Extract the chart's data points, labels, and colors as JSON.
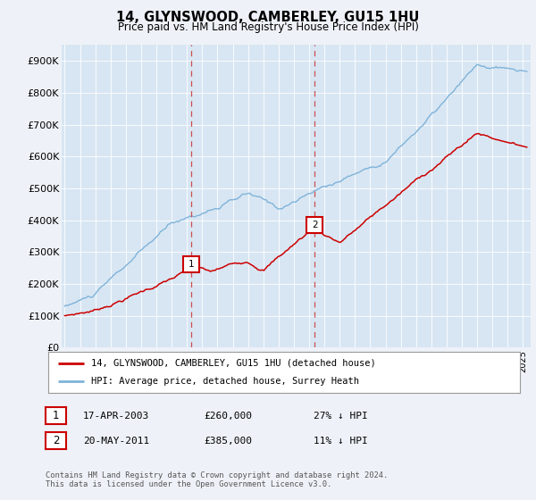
{
  "title": "14, GLYNSWOOD, CAMBERLEY, GU15 1HU",
  "subtitle": "Price paid vs. HM Land Registry's House Price Index (HPI)",
  "background_color": "#eef2f8",
  "plot_bg_color": "#d8e6f3",
  "red_line_color": "#cc0000",
  "blue_line_color": "#7fb3d9",
  "sale1_year": 2003.29,
  "sale1_value": 260000,
  "sale2_year": 2011.37,
  "sale2_value": 385000,
  "vline_color": "#cc3333",
  "legend_label_red": "14, GLYNSWOOD, CAMBERLEY, GU15 1HU (detached house)",
  "legend_label_blue": "HPI: Average price, detached house, Surrey Heath",
  "table_rows": [
    [
      "1",
      "17-APR-2003",
      "£260,000",
      "27% ↓ HPI"
    ],
    [
      "2",
      "20-MAY-2011",
      "£385,000",
      "11% ↓ HPI"
    ]
  ],
  "footnote": "Contains HM Land Registry data © Crown copyright and database right 2024.\nThis data is licensed under the Open Government Licence v3.0.",
  "ylim": [
    0,
    950000
  ],
  "yticks": [
    0,
    100000,
    200000,
    300000,
    400000,
    500000,
    600000,
    700000,
    800000,
    900000
  ],
  "ytick_labels": [
    "£0",
    "£100K",
    "£200K",
    "£300K",
    "£400K",
    "£500K",
    "£600K",
    "£700K",
    "£800K",
    "£900K"
  ]
}
